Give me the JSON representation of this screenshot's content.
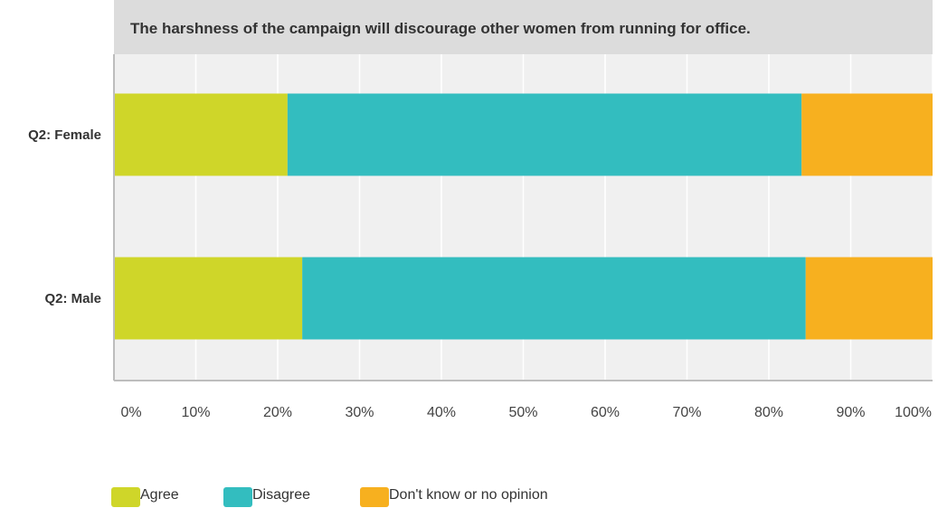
{
  "chart_data": {
    "type": "bar",
    "orientation": "horizontal",
    "stacked": true,
    "title": "The harshness of the campaign will discourage other women from running for office.",
    "categories": [
      "Q2: Female",
      "Q2: Male"
    ],
    "series": [
      {
        "name": "Agree",
        "values": [
          21.2,
          23.0
        ],
        "color": "#cfd629"
      },
      {
        "name": "Disagree",
        "values": [
          62.8,
          61.5
        ],
        "color": "#33bdbf"
      },
      {
        "name": "Don't know or no opinion",
        "values": [
          16.0,
          15.5
        ],
        "color": "#f7b01f"
      }
    ],
    "xlim": [
      0,
      100
    ],
    "xticks": [
      "0%",
      "10%",
      "20%",
      "30%",
      "40%",
      "50%",
      "60%",
      "70%",
      "80%",
      "90%",
      "100%"
    ],
    "xlabel": "",
    "ylabel": "",
    "grid": true,
    "legend": "bottom-left"
  }
}
